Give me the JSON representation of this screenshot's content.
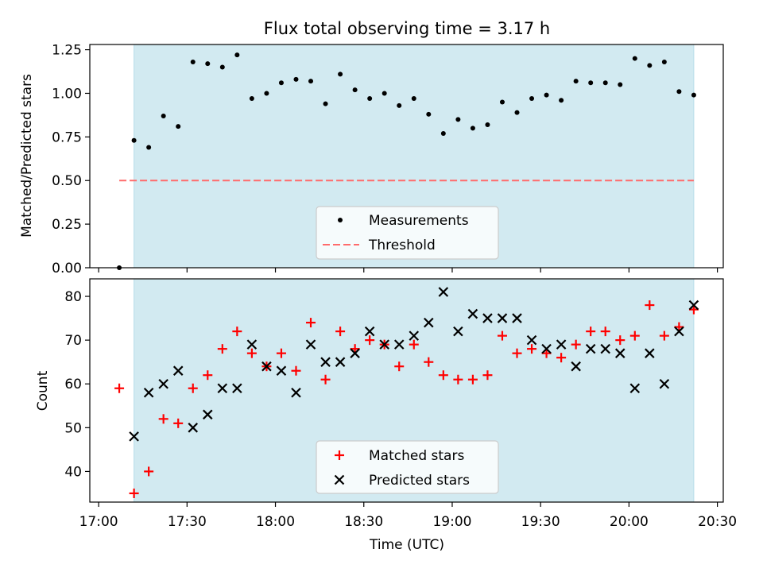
{
  "chart_data": [
    {
      "type": "scatter",
      "title": "Flux total observing time = 3.17 h",
      "xlabel": "",
      "ylabel": "Matched/Predicted stars",
      "ylim": [
        0,
        1.28
      ],
      "yticks": [
        "0.00",
        "0.25",
        "0.50",
        "0.75",
        "1.00",
        "1.25"
      ],
      "shaded_span": [
        "17:12",
        "20:22"
      ],
      "shade_color": "#add8e6",
      "legend_position": "lower center",
      "threshold": {
        "name": "Threshold",
        "value": 0.5,
        "x_from": "17:07",
        "x_to": "20:22",
        "color": "#ff6b6b",
        "style": "dashed"
      },
      "series": [
        {
          "name": "Measurements",
          "marker": "dot",
          "color": "#000000",
          "x": [
            "17:07",
            "17:12",
            "17:17",
            "17:22",
            "17:27",
            "17:32",
            "17:37",
            "17:42",
            "17:47",
            "17:52",
            "17:57",
            "18:02",
            "18:07",
            "18:12",
            "18:17",
            "18:22",
            "18:27",
            "18:32",
            "18:37",
            "18:42",
            "18:47",
            "18:52",
            "18:57",
            "19:02",
            "19:07",
            "19:12",
            "19:17",
            "19:22",
            "19:27",
            "19:32",
            "19:37",
            "19:42",
            "19:47",
            "19:52",
            "19:57",
            "20:02",
            "20:07",
            "20:12",
            "20:17",
            "20:22"
          ],
          "y": [
            0.0,
            0.73,
            0.69,
            0.87,
            0.81,
            1.18,
            1.17,
            1.15,
            1.22,
            0.97,
            1.0,
            1.06,
            1.08,
            1.07,
            0.94,
            1.11,
            1.02,
            0.97,
            1.0,
            0.93,
            0.97,
            0.88,
            0.77,
            0.85,
            0.8,
            0.82,
            0.95,
            0.89,
            0.97,
            0.99,
            0.96,
            1.07,
            1.06,
            1.06,
            1.05,
            1.2,
            1.16,
            1.18,
            1.01,
            0.99
          ]
        }
      ]
    },
    {
      "type": "scatter",
      "xlabel": "Time (UTC)",
      "ylabel": "Count",
      "xlim": [
        "16:57",
        "20:32"
      ],
      "xticks": [
        "17:00",
        "17:30",
        "18:00",
        "18:30",
        "19:00",
        "19:30",
        "20:00",
        "20:30"
      ],
      "ylim": [
        33,
        84
      ],
      "yticks": [
        "40",
        "50",
        "60",
        "70",
        "80"
      ],
      "shaded_span": [
        "17:12",
        "20:22"
      ],
      "shade_color": "#add8e6",
      "legend_position": "lower center",
      "series": [
        {
          "name": "Matched stars",
          "marker": "plus",
          "color": "#ff0000",
          "x": [
            "17:07",
            "17:12",
            "17:17",
            "17:22",
            "17:27",
            "17:32",
            "17:37",
            "17:42",
            "17:47",
            "17:52",
            "17:57",
            "18:02",
            "18:07",
            "18:12",
            "18:17",
            "18:22",
            "18:27",
            "18:32",
            "18:37",
            "18:42",
            "18:47",
            "18:52",
            "18:57",
            "19:02",
            "19:07",
            "19:12",
            "19:17",
            "19:22",
            "19:27",
            "19:32",
            "19:37",
            "19:42",
            "19:47",
            "19:52",
            "19:57",
            "20:02",
            "20:07",
            "20:12",
            "20:17",
            "20:22"
          ],
          "y": [
            59,
            35,
            40,
            52,
            51,
            59,
            62,
            68,
            72,
            67,
            64,
            67,
            63,
            74,
            61,
            72,
            68,
            70,
            69,
            64,
            69,
            65,
            62,
            61,
            61,
            62,
            71,
            67,
            68,
            67,
            66,
            69,
            72,
            72,
            70,
            71,
            78,
            71,
            73,
            77
          ]
        },
        {
          "name": "Predicted stars",
          "marker": "x",
          "color": "#000000",
          "x": [
            "17:12",
            "17:17",
            "17:22",
            "17:27",
            "17:32",
            "17:37",
            "17:42",
            "17:47",
            "17:52",
            "17:57",
            "18:02",
            "18:07",
            "18:12",
            "18:17",
            "18:22",
            "18:27",
            "18:32",
            "18:37",
            "18:42",
            "18:47",
            "18:52",
            "18:57",
            "19:02",
            "19:07",
            "19:12",
            "19:17",
            "19:22",
            "19:27",
            "19:32",
            "19:37",
            "19:42",
            "19:47",
            "19:52",
            "19:57",
            "20:02",
            "20:07",
            "20:12",
            "20:17",
            "20:22"
          ],
          "y": [
            48,
            58,
            60,
            63,
            50,
            53,
            59,
            59,
            69,
            64,
            63,
            58,
            69,
            65,
            65,
            67,
            72,
            69,
            69,
            71,
            74,
            81,
            72,
            76,
            75,
            75,
            75,
            70,
            68,
            69,
            64,
            68,
            68,
            67,
            59,
            67,
            60,
            72,
            78
          ]
        }
      ]
    }
  ]
}
